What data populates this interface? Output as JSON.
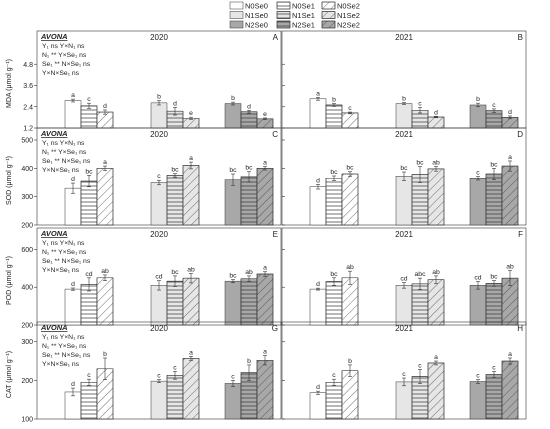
{
  "legend": [
    {
      "label": "N0Se0",
      "color": "#ffffff",
      "pattern": "none"
    },
    {
      "label": "N0Se1",
      "color": "#ffffff",
      "pattern": "hlines"
    },
    {
      "label": "N0Se2",
      "color": "#ffffff",
      "pattern": "diag"
    },
    {
      "label": "N1Se0",
      "color": "#e6e6e6",
      "pattern": "none"
    },
    {
      "label": "N1Se1",
      "color": "#e6e6e6",
      "pattern": "hlines"
    },
    {
      "label": "N1Se2",
      "color": "#e6e6e6",
      "pattern": "diag"
    },
    {
      "label": "N2Se0",
      "color": "#a8a8a8",
      "pattern": "none"
    },
    {
      "label": "N2Se1",
      "color": "#a8a8a8",
      "pattern": "hlines"
    },
    {
      "label": "N2Se2",
      "color": "#a8a8a8",
      "pattern": "diag"
    }
  ],
  "stats_labels": {
    "A": [
      "Y₁  ns      Y×N₁    ns",
      "N₁  **      Y×Se₁  ns",
      "Se₁  **      N×Se₁  ns",
      "Y×N×Se₁  ns"
    ],
    "C": [
      "Y₁  ns      Y×N₁    ns",
      "N₁  **      Y×Se₁  ns",
      "Se₁  **      N×Se₁  ns",
      "Y×N×Se₁  ns"
    ],
    "E": [
      "Y₁  ns      Y×N₁    ns",
      "N₁  **      Y×Se₁  ns",
      "Se₁  **      N×Se₁  ns",
      "Y×N×Se₁  ns"
    ],
    "G": [
      "Y₁  ns      Y×N₁    ns",
      "N₁  **      Y×Se₁  ns",
      "Se₁  **      N×Se₁  ns",
      "Y×N×Se₁  ns"
    ]
  },
  "chart_data": [
    {
      "type": "bar",
      "panel": "A",
      "title": "2020",
      "avona": "AVONA",
      "ylabel": "MDA (μmol g⁻¹)",
      "ylim": [
        1.2,
        6.0
      ],
      "yticks": [
        "1.2",
        "2.4",
        "3.6",
        "4.8"
      ],
      "groups": [
        {
          "values": [
            2.75,
            2.45,
            2.1
          ],
          "errors": [
            0.08,
            0.15,
            0.12
          ],
          "letters": [
            "a",
            "c",
            "d"
          ]
        },
        {
          "values": [
            2.62,
            2.15,
            1.75
          ],
          "errors": [
            0.12,
            0.22,
            0.06
          ],
          "letters": [
            "b",
            "d",
            "e"
          ]
        },
        {
          "values": [
            2.58,
            2.12,
            1.72
          ],
          "errors": [
            0.08,
            0.08,
            0.05
          ],
          "letters": [
            "b",
            "d",
            "e"
          ]
        }
      ]
    },
    {
      "type": "bar",
      "panel": "B",
      "title": "2021",
      "ylim": [
        1.2,
        6.0
      ],
      "yticks": [
        "1.2",
        "2.4",
        "3.6",
        "4.8"
      ],
      "groups": [
        {
          "values": [
            2.85,
            2.5,
            2.05
          ],
          "errors": [
            0.08,
            0.08,
            0.05
          ],
          "letters": [
            "a",
            "b",
            "c"
          ]
        },
        {
          "values": [
            2.58,
            2.2,
            1.82
          ],
          "errors": [
            0.05,
            0.15,
            0.04
          ],
          "letters": [
            "b",
            "c",
            "d"
          ]
        },
        {
          "values": [
            2.5,
            2.18,
            1.8
          ],
          "errors": [
            0.1,
            0.1,
            0.08
          ],
          "letters": [
            "b",
            "c",
            "d"
          ]
        }
      ]
    },
    {
      "type": "bar",
      "panel": "C",
      "title": "2020",
      "avona": "AVONA",
      "ylabel": "SOD (μmol g⁻¹)",
      "ylim": [
        200,
        500
      ],
      "yticks": [
        "200",
        "300",
        "400",
        "500"
      ],
      "groups": [
        {
          "values": [
            330,
            355,
            400
          ],
          "errors": [
            18,
            20,
            8
          ],
          "letters": [
            "d",
            "bc",
            "a"
          ]
        },
        {
          "values": [
            350,
            375,
            410
          ],
          "errors": [
            8,
            6,
            12
          ],
          "letters": [
            "c",
            "bc",
            "a"
          ]
        },
        {
          "values": [
            360,
            370,
            400
          ],
          "errors": [
            20,
            18,
            6
          ],
          "letters": [
            "bc",
            "bc",
            "a"
          ]
        }
      ]
    },
    {
      "type": "bar",
      "panel": "D",
      "title": "2021",
      "ylim": [
        200,
        500
      ],
      "yticks": [
        "200",
        "300",
        "400",
        "500"
      ],
      "groups": [
        {
          "values": [
            335,
            365,
            380
          ],
          "errors": [
            8,
            8,
            8
          ],
          "letters": [
            "d",
            "bc",
            "bc"
          ]
        },
        {
          "values": [
            372,
            378,
            398
          ],
          "errors": [
            15,
            28,
            8
          ],
          "letters": [
            "bc",
            "bc",
            "ab"
          ]
        },
        {
          "values": [
            365,
            380,
            408
          ],
          "errors": [
            6,
            20,
            18
          ],
          "letters": [
            "c",
            "bc",
            "a"
          ]
        }
      ]
    },
    {
      "type": "bar",
      "panel": "E",
      "title": "2020",
      "avona": "AVONA",
      "ylabel": "POD (μmol g⁻¹)",
      "ylim": [
        200,
        650
      ],
      "yticks": [
        "200",
        "400",
        "600"
      ],
      "groups": [
        {
          "values": [
            390,
            415,
            450
          ],
          "errors": [
            6,
            35,
            15
          ],
          "letters": [
            "d",
            "cd",
            "ab"
          ]
        },
        {
          "values": [
            410,
            432,
            448
          ],
          "errors": [
            25,
            28,
            25
          ],
          "letters": [
            "cd",
            "bc",
            "ab"
          ]
        },
        {
          "values": [
            432,
            445,
            470
          ],
          "errors": [
            8,
            15,
            12
          ],
          "letters": [
            "bc",
            "ab",
            "a"
          ]
        }
      ]
    },
    {
      "type": "bar",
      "panel": "F",
      "title": "2021",
      "ylim": [
        200,
        650
      ],
      "yticks": [
        "200",
        "400",
        "600"
      ],
      "groups": [
        {
          "values": [
            390,
            430,
            450
          ],
          "errors": [
            5,
            20,
            35
          ],
          "letters": [
            "d",
            "bc",
            "ab"
          ]
        },
        {
          "values": [
            410,
            418,
            440
          ],
          "errors": [
            15,
            30,
            20
          ],
          "letters": [
            "cd",
            "abc",
            "ab"
          ]
        },
        {
          "values": [
            410,
            420,
            448
          ],
          "errors": [
            20,
            15,
            40
          ],
          "letters": [
            "cd",
            "bc",
            "ab"
          ]
        }
      ]
    },
    {
      "type": "bar",
      "panel": "G",
      "title": "2020",
      "avona": "AVONA",
      "ylabel": "CAT (μmol g⁻¹)",
      "ylim": [
        100,
        320
      ],
      "yticks": [
        "100",
        "200",
        "300"
      ],
      "groups": [
        {
          "values": [
            170,
            195,
            230
          ],
          "errors": [
            10,
            8,
            28
          ],
          "letters": [
            "d",
            "c",
            "b"
          ]
        },
        {
          "values": [
            198,
            213,
            257
          ],
          "errors": [
            4,
            10,
            5
          ],
          "letters": [
            "c",
            "c",
            "a"
          ]
        },
        {
          "values": [
            192,
            220,
            252
          ],
          "errors": [
            8,
            20,
            12
          ],
          "letters": [
            "c",
            "b",
            "a"
          ]
        }
      ]
    },
    {
      "type": "bar",
      "panel": "H",
      "title": "2021",
      "ylim": [
        100,
        320
      ],
      "yticks": [
        "100",
        "200",
        "300"
      ],
      "groups": [
        {
          "values": [
            168,
            195,
            225
          ],
          "errors": [
            4,
            8,
            15
          ],
          "letters": [
            "d",
            "c",
            "b"
          ]
        },
        {
          "values": [
            196,
            210,
            245
          ],
          "errors": [
            10,
            18,
            5
          ],
          "letters": [
            "c",
            "c",
            "a"
          ]
        },
        {
          "values": [
            197,
            215,
            250
          ],
          "errors": [
            5,
            8,
            8
          ],
          "letters": [
            "c",
            "c",
            "a"
          ]
        }
      ]
    }
  ]
}
